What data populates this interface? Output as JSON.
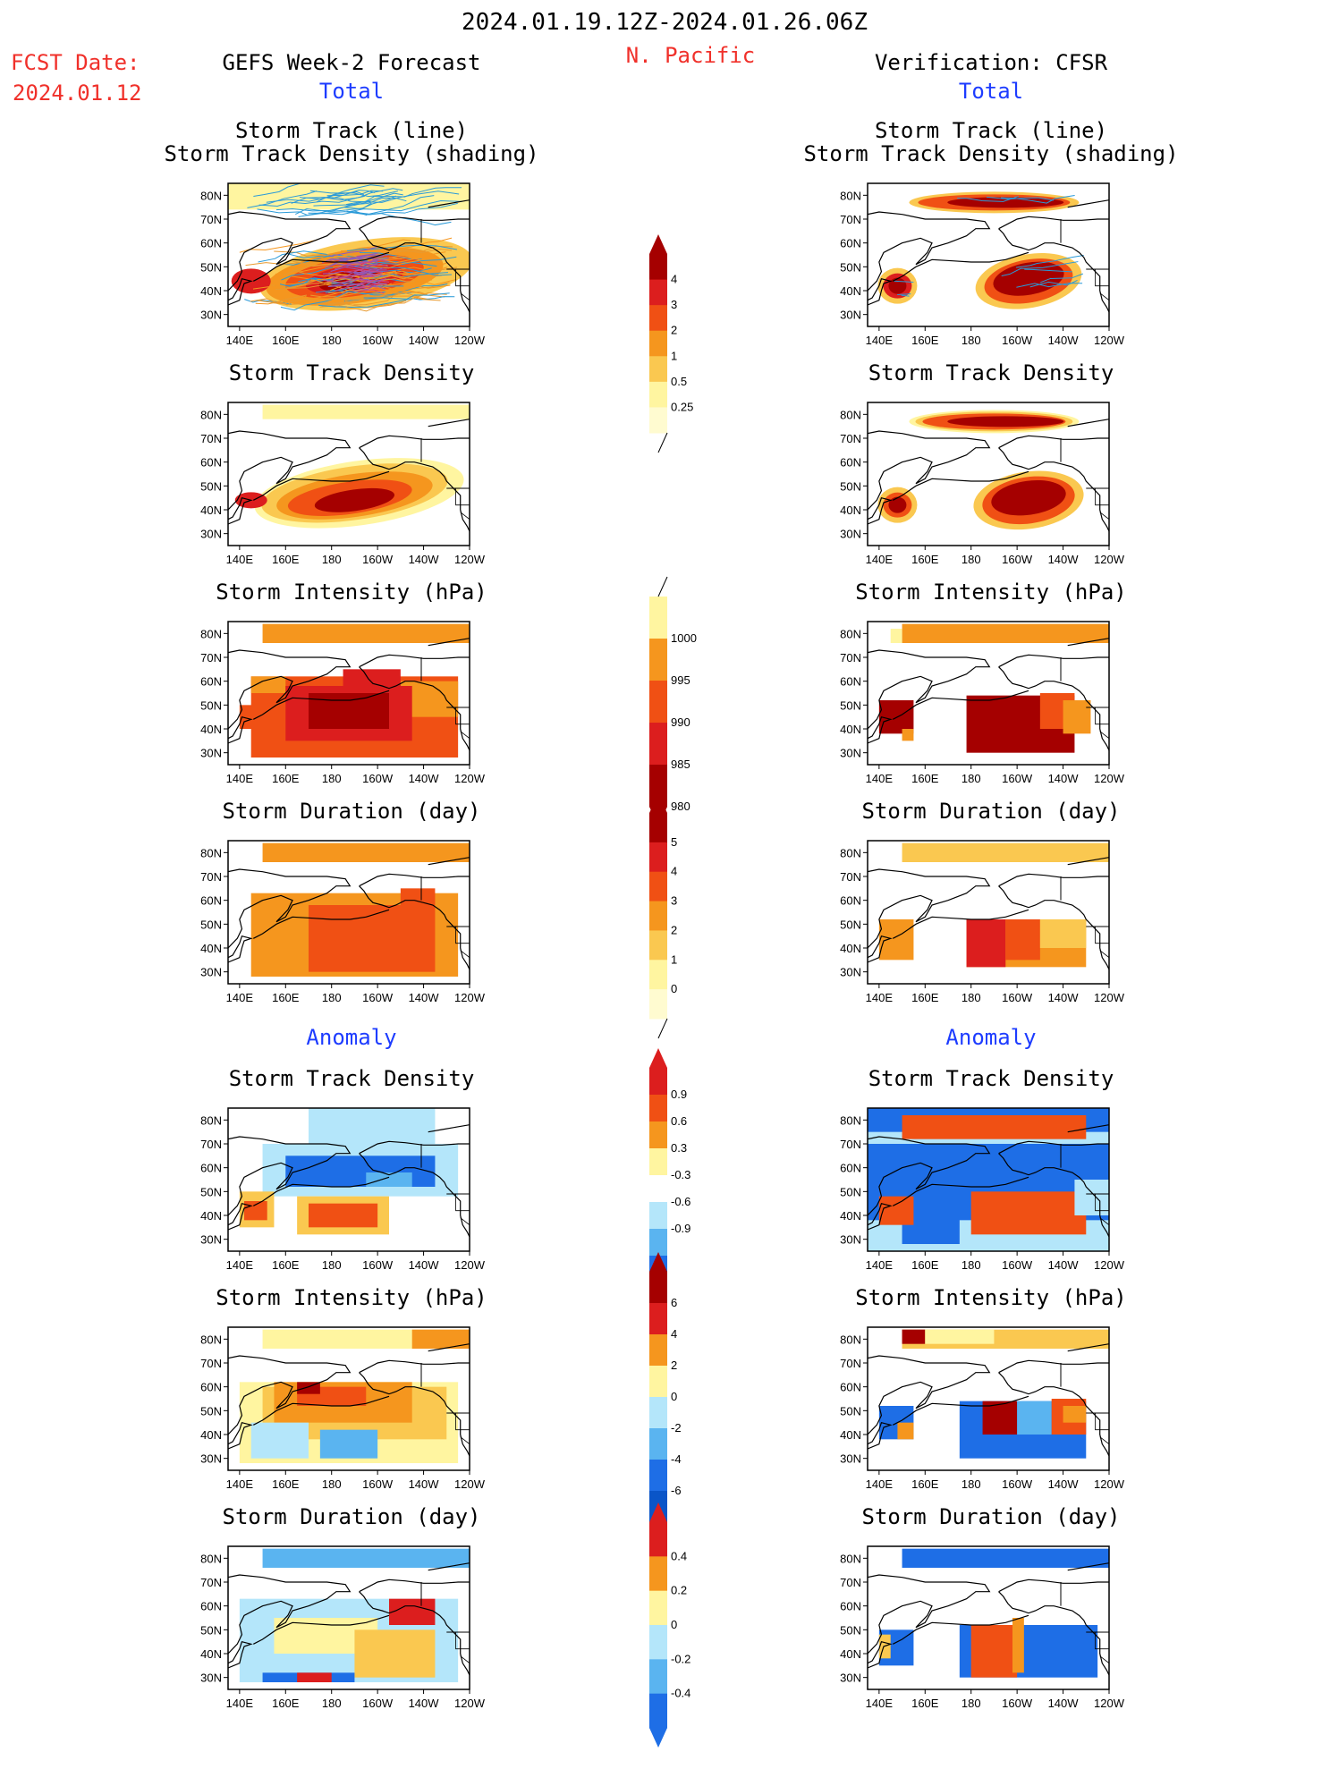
{
  "header": {
    "date_range": "2024.01.19.12Z-2024.01.26.06Z",
    "region": "N. Pacific",
    "fcst_label": "FCST Date:",
    "fcst_date": "2024.01.12",
    "left_title": "GEFS Week-2 Forecast",
    "right_title": "Verification: CFSR",
    "total_label": "Total",
    "anomaly_label": "Anomaly"
  },
  "axes": {
    "lat_labels": [
      "80N",
      "70N",
      "60N",
      "50N",
      "40N",
      "30N"
    ],
    "lon_labels": [
      "140E",
      "160E",
      "180",
      "160W",
      "140W",
      "120W"
    ]
  },
  "panel_titles": {
    "track_line": "Storm Track (line)",
    "track_shading": "Storm Track Density (shading)",
    "density": "Storm Track Density",
    "intensity": "Storm Intensity (hPa)",
    "duration": "Storm Duration (day)"
  },
  "colorbars": {
    "density": [
      "4",
      "3",
      "2",
      "1",
      "0.5",
      "0.25"
    ],
    "intensity": [
      "1000",
      "995",
      "990",
      "985",
      "980"
    ],
    "duration": [
      "5",
      "4",
      "3",
      "2",
      "1",
      "0"
    ],
    "anom_density": [
      "0.9",
      "0.6",
      "0.3",
      "-0.3",
      "-0.6",
      "-0.9"
    ],
    "anom_intensity": [
      "6",
      "4",
      "2",
      "0",
      "-2",
      "-4",
      "-6"
    ],
    "anom_duration": [
      "0.4",
      "0.2",
      "0",
      "-0.2",
      "-0.4"
    ]
  },
  "colors": {
    "title_red": "#f0302a",
    "label_blue": "#1d3cff",
    "dark_red": "#a50000",
    "red": "#dc1e1e",
    "orange_red": "#f05014",
    "orange": "#f5961e",
    "light_orange": "#fac850",
    "pale_yellow": "#fff5a0",
    "light_blue": "#b4e6fa",
    "mid_blue": "#5ab4f0",
    "blue": "#1e6ee6",
    "track_blue": "#2a9ad8"
  }
}
